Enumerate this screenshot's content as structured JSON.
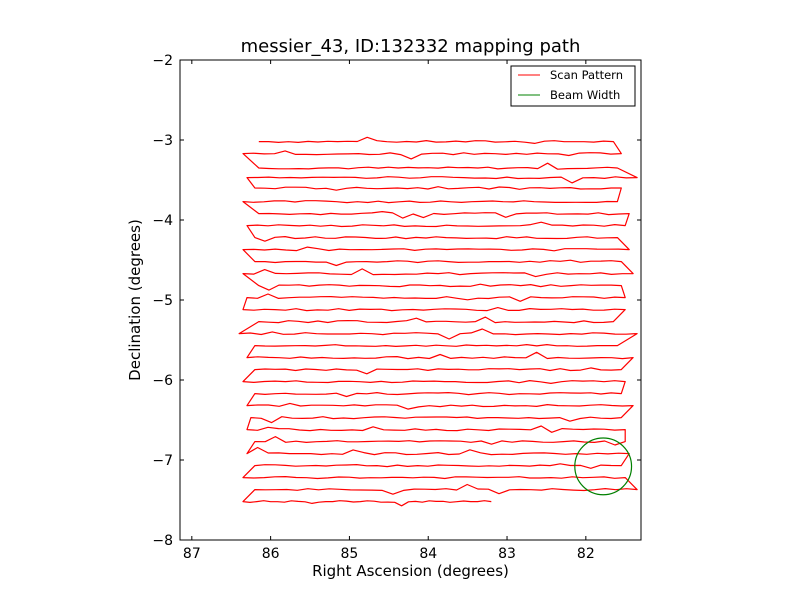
{
  "chart_data": {
    "type": "line",
    "title": "messier_43, ID:132332 mapping path",
    "xlabel": "Right Ascension (degrees)",
    "ylabel": "Declination (degrees)",
    "xlim": [
      87.15,
      81.3
    ],
    "ylim": [
      -8,
      -2
    ],
    "x_inverted": true,
    "xticks": [
      87,
      86,
      85,
      84,
      83,
      82
    ],
    "yticks": [
      -2,
      -3,
      -4,
      -5,
      -6,
      -7,
      -8
    ],
    "xtick_labels": [
      "87",
      "86",
      "85",
      "84",
      "83",
      "82"
    ],
    "ytick_labels": [
      "−2",
      "−3",
      "−4",
      "−5",
      "−6",
      "−7",
      "−8"
    ],
    "grid": false,
    "legend": {
      "placement": "top-right",
      "entries": [
        {
          "label": "Scan Pattern",
          "color": "#ff0000"
        },
        {
          "label": "Beam Width",
          "color": "#008000"
        }
      ]
    },
    "scan_rows": [
      {
        "dec": -3.02,
        "ra_start": 86.15,
        "ra_end": 81.65
      },
      {
        "dec": -3.17,
        "ra_start": 86.35,
        "ra_end": 81.55
      },
      {
        "dec": -3.35,
        "ra_start": 86.15,
        "ra_end": 81.6
      },
      {
        "dec": -3.47,
        "ra_start": 86.3,
        "ra_end": 81.35
      },
      {
        "dec": -3.6,
        "ra_start": 86.2,
        "ra_end": 81.55
      },
      {
        "dec": -3.77,
        "ra_start": 86.35,
        "ra_end": 81.6
      },
      {
        "dec": -3.92,
        "ra_start": 86.15,
        "ra_end": 81.45
      },
      {
        "dec": -4.07,
        "ra_start": 86.3,
        "ra_end": 81.5
      },
      {
        "dec": -4.22,
        "ra_start": 86.2,
        "ra_end": 81.6
      },
      {
        "dec": -4.37,
        "ra_start": 86.35,
        "ra_end": 81.45
      },
      {
        "dec": -4.52,
        "ra_start": 86.2,
        "ra_end": 81.55
      },
      {
        "dec": -4.67,
        "ra_start": 86.35,
        "ra_end": 81.4
      },
      {
        "dec": -4.82,
        "ra_start": 86.15,
        "ra_end": 81.55
      },
      {
        "dec": -4.97,
        "ra_start": 86.3,
        "ra_end": 81.5
      },
      {
        "dec": -5.12,
        "ra_start": 86.35,
        "ra_end": 81.5
      },
      {
        "dec": -5.27,
        "ra_start": 86.15,
        "ra_end": 81.65
      },
      {
        "dec": -5.42,
        "ra_start": 86.4,
        "ra_end": 81.35
      },
      {
        "dec": -5.57,
        "ra_start": 86.2,
        "ra_end": 81.6
      },
      {
        "dec": -5.72,
        "ra_start": 86.3,
        "ra_end": 81.4
      },
      {
        "dec": -5.87,
        "ra_start": 86.2,
        "ra_end": 81.55
      },
      {
        "dec": -6.02,
        "ra_start": 86.35,
        "ra_end": 81.5
      },
      {
        "dec": -6.17,
        "ra_start": 86.2,
        "ra_end": 81.55
      },
      {
        "dec": -6.32,
        "ra_start": 86.3,
        "ra_end": 81.4
      },
      {
        "dec": -6.47,
        "ra_start": 86.25,
        "ra_end": 81.55
      },
      {
        "dec": -6.62,
        "ra_start": 86.3,
        "ra_end": 81.5
      },
      {
        "dec": -6.77,
        "ra_start": 86.2,
        "ra_end": 81.5
      },
      {
        "dec": -6.92,
        "ra_start": 86.3,
        "ra_end": 81.45
      },
      {
        "dec": -7.07,
        "ra_start": 86.2,
        "ra_end": 81.55
      },
      {
        "dec": -7.22,
        "ra_start": 86.35,
        "ra_end": 81.5
      },
      {
        "dec": -7.37,
        "ra_start": 86.2,
        "ra_end": 81.35
      },
      {
        "dec": -7.52,
        "ra_start": 86.35,
        "ra_end": 83.2
      }
    ],
    "beam_width": {
      "ra": 81.78,
      "dec": -7.08,
      "radius_deg": 0.36
    }
  }
}
